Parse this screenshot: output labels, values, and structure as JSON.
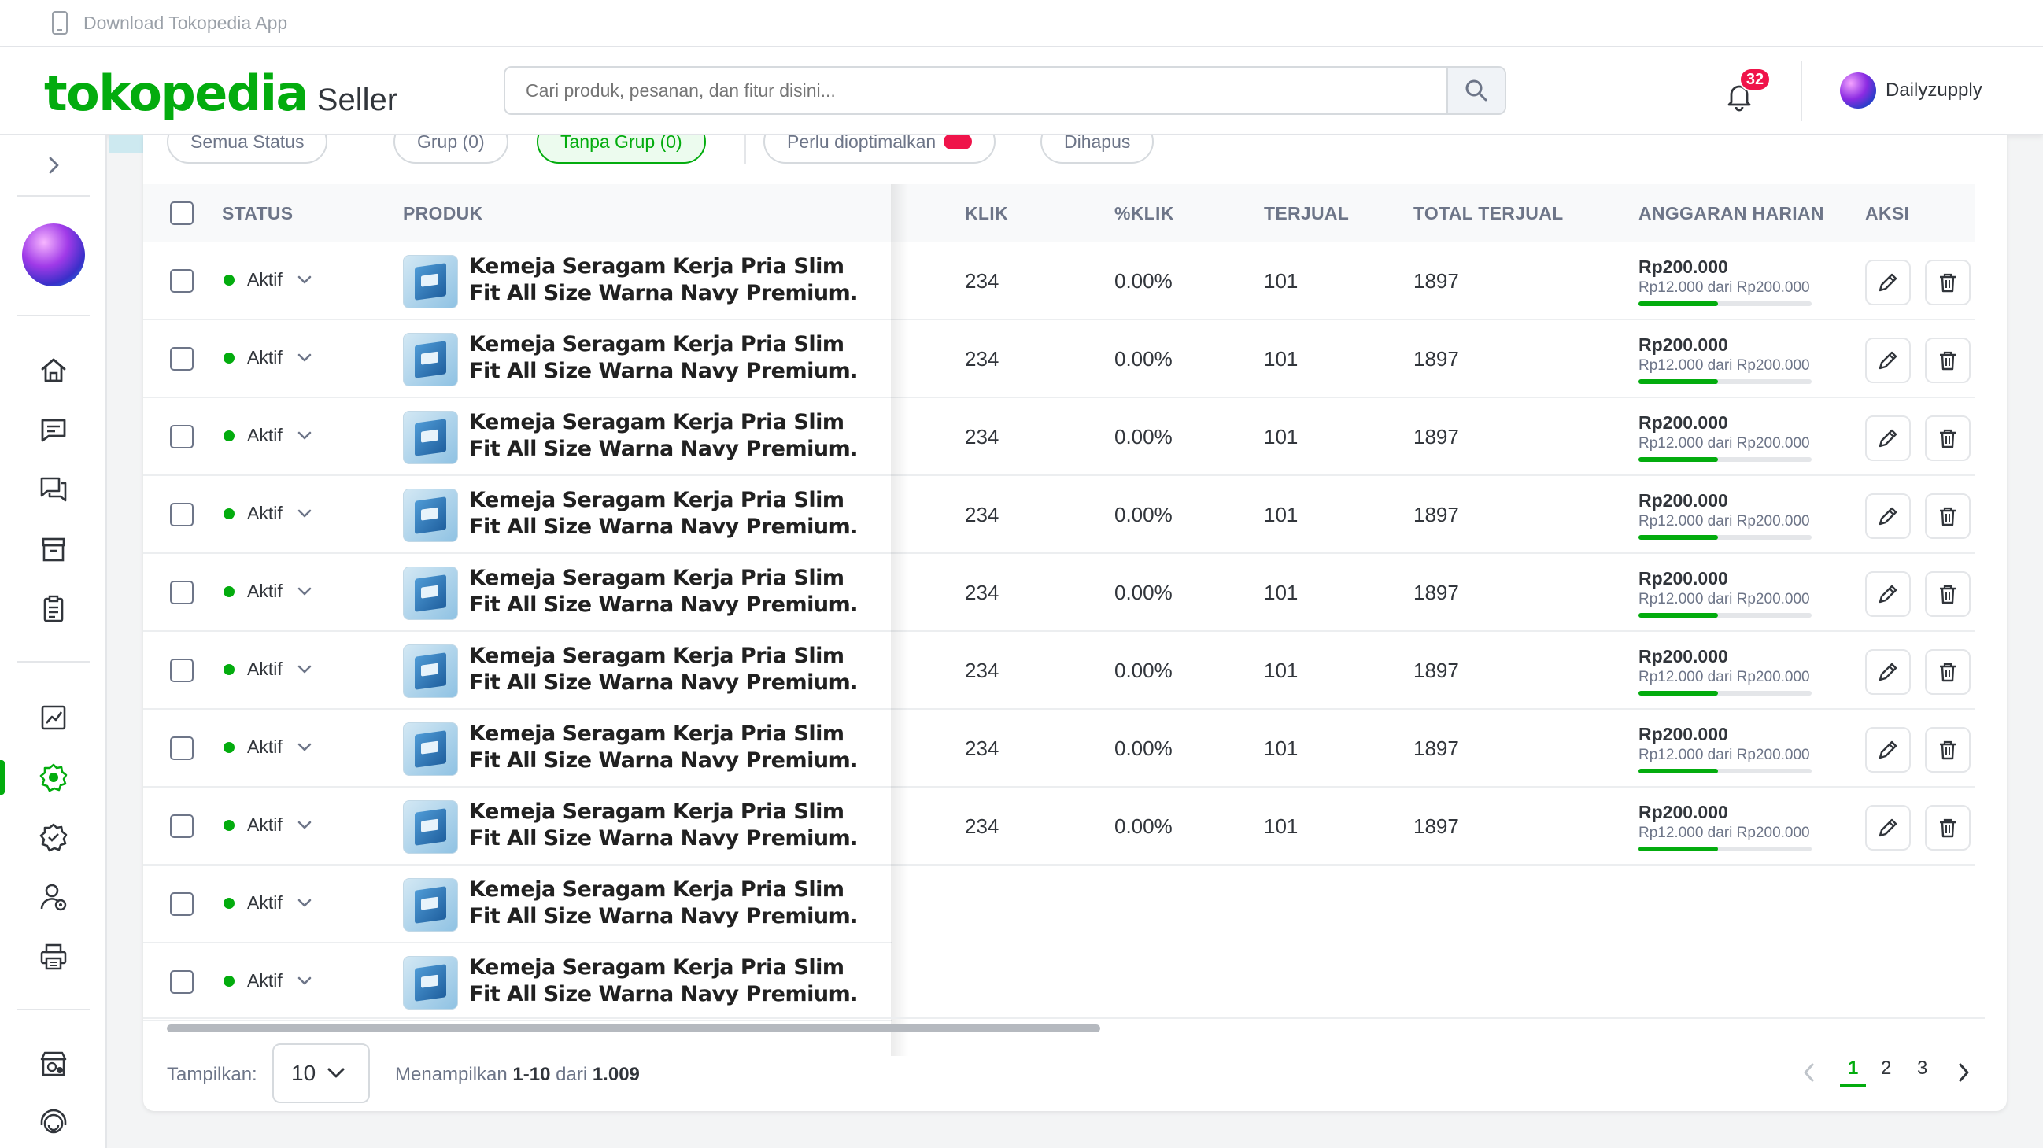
{
  "topbar": {
    "download_label": "Download Tokopedia App"
  },
  "header": {
    "brand": "tokopedia",
    "brand_suffix": "Seller",
    "search_placeholder": "Cari produk, pesanan, dan fitur disini...",
    "notification_count": "32",
    "user_name": "Dailyzupply"
  },
  "sidebar": {
    "icons": [
      "home-icon",
      "chat-icon",
      "discussion-icon",
      "store-icon",
      "order-list-icon",
      "statistics-icon",
      "ads-icon",
      "badge-icon",
      "user-settings-icon",
      "print-icon",
      "shop-icon",
      "support-icon"
    ],
    "active": "ads-icon"
  },
  "filters": {
    "items": [
      "Semua Status",
      "Grup (0)",
      "Tanpa Grup (0)",
      "Perlu dioptimalkan",
      "Dihapus"
    ],
    "active_index": 2
  },
  "table": {
    "headers": {
      "status": "STATUS",
      "product": "PRODUK",
      "click": "KLIK",
      "click_pct": "%KLIK",
      "sold": "TERJUAL",
      "total_sold": "TOTAL TERJUAL",
      "daily_budget": "ANGGARAN HARIAN",
      "action": "AKSI"
    },
    "rows": [
      {
        "status": "Aktif",
        "product": "Kemeja Seragam Kerja Pria Slim Fit All Size Warna Navy Premium.",
        "click": "234",
        "click_pct": "0.00%",
        "sold": "101",
        "total_sold": "1897",
        "budget": "Rp200.000",
        "budget_used": "Rp12.000 dari Rp200.000",
        "budget_fill": 0.46
      },
      {
        "status": "Aktif",
        "product": "Kemeja Seragam Kerja Pria Slim Fit All Size Warna Navy Premium.",
        "click": "234",
        "click_pct": "0.00%",
        "sold": "101",
        "total_sold": "1897",
        "budget": "Rp200.000",
        "budget_used": "Rp12.000 dari Rp200.000",
        "budget_fill": 0.46
      },
      {
        "status": "Aktif",
        "product": "Kemeja Seragam Kerja Pria Slim Fit All Size Warna Navy Premium.",
        "click": "234",
        "click_pct": "0.00%",
        "sold": "101",
        "total_sold": "1897",
        "budget": "Rp200.000",
        "budget_used": "Rp12.000 dari Rp200.000",
        "budget_fill": 0.46
      },
      {
        "status": "Aktif",
        "product": "Kemeja Seragam Kerja Pria Slim Fit All Size Warna Navy Premium.",
        "click": "234",
        "click_pct": "0.00%",
        "sold": "101",
        "total_sold": "1897",
        "budget": "Rp200.000",
        "budget_used": "Rp12.000 dari Rp200.000",
        "budget_fill": 0.46
      },
      {
        "status": "Aktif",
        "product": "Kemeja Seragam Kerja Pria Slim Fit All Size Warna Navy Premium.",
        "click": "234",
        "click_pct": "0.00%",
        "sold": "101",
        "total_sold": "1897",
        "budget": "Rp200.000",
        "budget_used": "Rp12.000 dari Rp200.000",
        "budget_fill": 0.46
      },
      {
        "status": "Aktif",
        "product": "Kemeja Seragam Kerja Pria Slim Fit All Size Warna Navy Premium.",
        "click": "234",
        "click_pct": "0.00%",
        "sold": "101",
        "total_sold": "1897",
        "budget": "Rp200.000",
        "budget_used": "Rp12.000 dari Rp200.000",
        "budget_fill": 0.46
      },
      {
        "status": "Aktif",
        "product": "Kemeja Seragam Kerja Pria Slim Fit All Size Warna Navy Premium.",
        "click": "234",
        "click_pct": "0.00%",
        "sold": "101",
        "total_sold": "1897",
        "budget": "Rp200.000",
        "budget_used": "Rp12.000 dari Rp200.000",
        "budget_fill": 0.46
      },
      {
        "status": "Aktif",
        "product": "Kemeja Seragam Kerja Pria Slim Fit All Size Warna Navy Premium.",
        "click": "234",
        "click_pct": "0.00%",
        "sold": "101",
        "total_sold": "1897",
        "budget": "Rp200.000",
        "budget_used": "Rp12.000 dari Rp200.000",
        "budget_fill": 0.46
      },
      {
        "status": "Aktif",
        "product": "Kemeja Seragam Kerja Pria Slim Fit All Size Warna Navy Premium."
      },
      {
        "status": "Aktif",
        "product": "Kemeja Seragam Kerja Pria Slim Fit All Size Warna Navy Premium."
      }
    ]
  },
  "footer": {
    "show_label": "Tampilkan:",
    "per_page": "10",
    "showing_prefix": "Menampilkan",
    "showing_range": "1-10",
    "showing_mid": "dari",
    "showing_total": "1.009",
    "pages": [
      "1",
      "2",
      "3"
    ],
    "current_page": "1"
  },
  "colors": {
    "accent": "#03ac0e",
    "badge": "#ef144a"
  }
}
